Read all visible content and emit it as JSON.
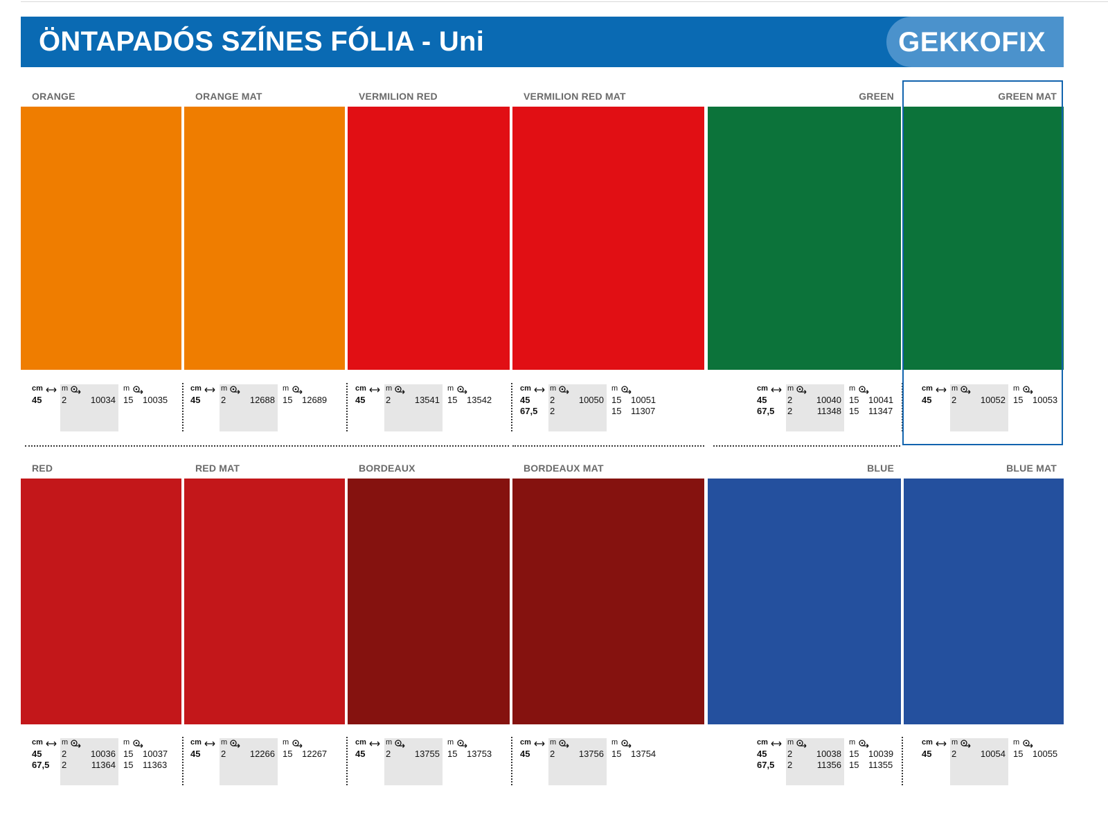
{
  "header": {
    "title": "ÖNTAPADÓS SZÍNES FÓLIA - Uni",
    "brand": "GEKKOFIX"
  },
  "colors": {
    "header_blue": "#0a6ab3",
    "brand_blue": "#4b92cc",
    "highlight": "#1163ae",
    "orange": "#ef7d00",
    "vermilion": "#e10f14",
    "green": "#0c733a",
    "red": "#c3171a",
    "bordeaux": "#85120f",
    "blue": "#24509e"
  },
  "icons": [
    "width-arrow-icon",
    "roll-icon"
  ],
  "info_labels": {
    "cm": "cm",
    "m": "m"
  },
  "rows": [
    {
      "swatches": [
        {
          "name": "ORANGE",
          "color": "orange",
          "widths": [
            "45"
          ],
          "short_m": "2",
          "short_codes": [
            "10034"
          ],
          "long_m": "15",
          "long_codes": [
            "10035"
          ]
        },
        {
          "name": "ORANGE MAT",
          "color": "orange",
          "widths": [
            "45"
          ],
          "short_m": "2",
          "short_codes": [
            "12688"
          ],
          "long_m": "15",
          "long_codes": [
            "12689"
          ]
        },
        {
          "name": "VERMILION RED",
          "color": "vermilion",
          "widths": [
            "45"
          ],
          "short_m": "2",
          "short_codes": [
            "13541"
          ],
          "long_m": "15",
          "long_codes": [
            "13542"
          ]
        },
        {
          "name": "VERMILION RED MAT",
          "color": "vermilion",
          "widths": [
            "45",
            "67,5"
          ],
          "short_m": "2",
          "short_codes": [
            "10050"
          ],
          "long_m": "15",
          "long_codes": [
            "10051",
            "11307"
          ]
        },
        {
          "name": "GREEN",
          "color": "green",
          "widths": [
            "45",
            "67,5"
          ],
          "short_m": "2",
          "short_codes": [
            "10040",
            "11348"
          ],
          "long_m": "15",
          "long_codes": [
            "10041",
            "11347"
          ]
        },
        {
          "name": "GREEN MAT",
          "color": "green",
          "widths": [
            "45"
          ],
          "short_m": "2",
          "short_codes": [
            "10052"
          ],
          "long_m": "15",
          "long_codes": [
            "10053"
          ],
          "selected": true
        }
      ]
    },
    {
      "swatches": [
        {
          "name": "RED",
          "color": "red",
          "widths": [
            "45",
            "67,5"
          ],
          "short_m": "2",
          "short_codes": [
            "10036",
            "11364"
          ],
          "long_m": "15",
          "long_codes": [
            "10037",
            "11363"
          ]
        },
        {
          "name": "RED MAT",
          "color": "red",
          "widths": [
            "45"
          ],
          "short_m": "2",
          "short_codes": [
            "12266"
          ],
          "long_m": "15",
          "long_codes": [
            "12267"
          ]
        },
        {
          "name": "BORDEAUX",
          "color": "bordeaux",
          "widths": [
            "45"
          ],
          "short_m": "2",
          "short_codes": [
            "13755"
          ],
          "long_m": "15",
          "long_codes": [
            "13753"
          ]
        },
        {
          "name": "BORDEAUX MAT",
          "color": "bordeaux",
          "widths": [
            "45"
          ],
          "short_m": "2",
          "short_codes": [
            "13756"
          ],
          "long_m": "15",
          "long_codes": [
            "13754"
          ]
        },
        {
          "name": "BLUE",
          "color": "blue",
          "widths": [
            "45",
            "67,5"
          ],
          "short_m": "2",
          "short_codes": [
            "10038",
            "11356"
          ],
          "long_m": "15",
          "long_codes": [
            "10039",
            "11355"
          ]
        },
        {
          "name": "BLUE MAT",
          "color": "blue",
          "widths": [
            "45"
          ],
          "short_m": "2",
          "short_codes": [
            "10054"
          ],
          "long_m": "15",
          "long_codes": [
            "10055"
          ]
        }
      ]
    }
  ]
}
